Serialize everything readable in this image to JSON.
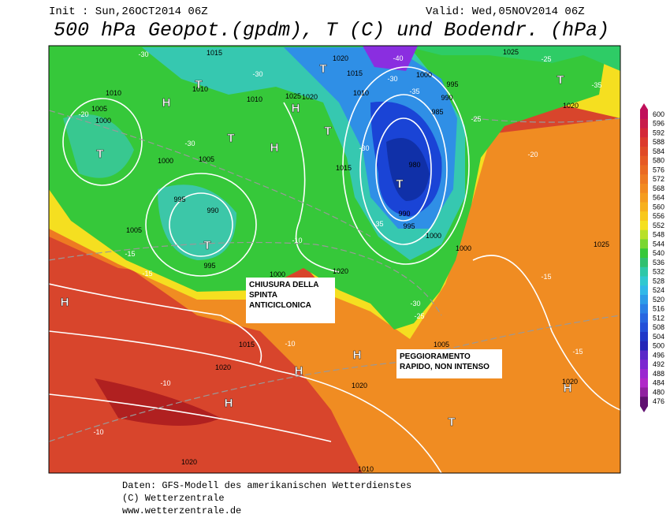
{
  "header": {
    "init": "Init : Sun,26OCT2014 06Z",
    "valid": "Valid: Wed,05NOV2014 06Z",
    "title": "500 hPa Geopot.(gpdm), T (C) und Bodendr. (hPa)"
  },
  "colorbar": {
    "levels": [
      "600",
      "596",
      "592",
      "588",
      "584",
      "580",
      "576",
      "572",
      "568",
      "564",
      "560",
      "556",
      "552",
      "548",
      "544",
      "540",
      "536",
      "532",
      "528",
      "524",
      "520",
      "516",
      "512",
      "508",
      "504",
      "500",
      "496",
      "492",
      "488",
      "484",
      "480",
      "476"
    ]
  },
  "annotations": [
    {
      "lines": [
        "CHIUSURA DELLA",
        "SPINTA",
        "ANTICICLONICA"
      ]
    },
    {
      "lines": [
        "PEGGIORAMENTO",
        "RAPIDO, NON INTENSO"
      ]
    }
  ],
  "map": {
    "pressure_labels": [
      "1015",
      "1020",
      "1015",
      "1000",
      "995",
      "990",
      "985",
      "980",
      "990",
      "995",
      "1000",
      "1000",
      "1010",
      "1005",
      "1000",
      "1000",
      "1005",
      "995",
      "990",
      "995",
      "1005",
      "1020",
      "1015",
      "1020",
      "1020",
      "1020",
      "1010",
      "1025",
      "1020",
      "1025",
      "1020",
      "1010",
      "1010",
      "1020",
      "1025",
      "1010",
      "1015",
      "1000",
      "1005"
    ],
    "systems": [
      "H",
      "T",
      "T",
      "H",
      "H",
      "T",
      "T",
      "T",
      "T",
      "T",
      "T",
      "H",
      "H",
      "H",
      "H",
      "T",
      "H"
    ],
    "temperature_labels": [
      "-30",
      "-30",
      "-30",
      "-30",
      "-25",
      "-20",
      "-15",
      "-15",
      "-15",
      "-15",
      "-10",
      "-10",
      "-10",
      "-10",
      "-20",
      "-35",
      "-30",
      "-25",
      "-40",
      "-25",
      "-35",
      "-30",
      "-35"
    ]
  },
  "footer": [
    "Daten: GFS-Modell des amerikanischen Wetterdienstes",
    "(C) Wetterzentrale",
    "www.wetterzentrale.de"
  ]
}
